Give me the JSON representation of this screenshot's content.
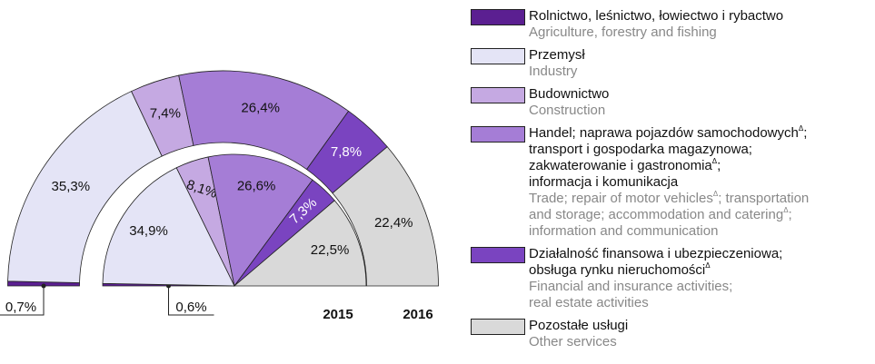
{
  "chart_data": {
    "type": "pie",
    "shape": "semicircle",
    "categories": [
      "Rolnictwo, leśnictwo, łowiectwo i rybactwo",
      "Przemysł",
      "Budownictwo",
      "Handel; naprawa pojazdów samochodowychΔ;\ntransport i gospodarka magazynowa;\nzakwaterowanie i gastronomiaΔ;\ninformacja i komunikacja",
      "Działalność finansowa i ubezpieczeniowa;\nobsługa rynku nieruchomościΔ",
      "Pozostałe usługi"
    ],
    "categories_en": [
      "Agriculture, forestry and fishing",
      "Industry",
      "Construction",
      "Trade; repair of motor vehiclesΔ; transportation\nand storage; accommodation and cateringΔ;\ninformation and communication",
      "Financial and insurance activities;\nreal estate activities",
      "Other services"
    ],
    "colors": [
      "#5b1f91",
      "#e4e4f6",
      "#c5a9e2",
      "#a57dd6",
      "#7a44c0",
      "#d9d9d9"
    ],
    "series": [
      {
        "name": "2015",
        "values": [
          0.6,
          34.9,
          8.1,
          26.6,
          7.3,
          22.5
        ],
        "value_labels": [
          "0,6%",
          "34,9%",
          "8,1%",
          "26,6%",
          "7,3%",
          "22,5%"
        ]
      },
      {
        "name": "2016",
        "values": [
          0.7,
          35.3,
          7.4,
          26.4,
          7.8,
          22.4
        ],
        "value_labels": [
          "0,7%",
          "35,3%",
          "7,4%",
          "26,4%",
          "7,8%",
          "22,4%"
        ]
      }
    ]
  }
}
